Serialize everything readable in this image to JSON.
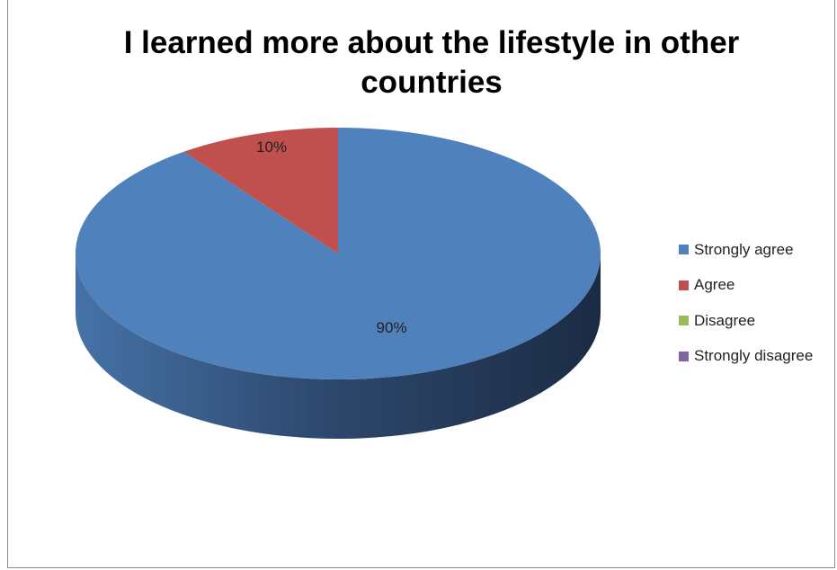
{
  "chart_data": {
    "type": "pie",
    "title_lines": [
      "I learned more about the lifestyle in other",
      "countries"
    ],
    "categories": [
      "Strongly agree",
      "Agree",
      "Disagree",
      "Strongly disagree"
    ],
    "values": [
      90,
      10,
      0,
      0
    ],
    "data_labels": [
      "90%",
      "10%",
      "",
      ""
    ],
    "colors": [
      "#4f81bd",
      "#c0504d",
      "#9bbb59",
      "#8064a2"
    ],
    "legend_position": "right",
    "three_d": true
  }
}
